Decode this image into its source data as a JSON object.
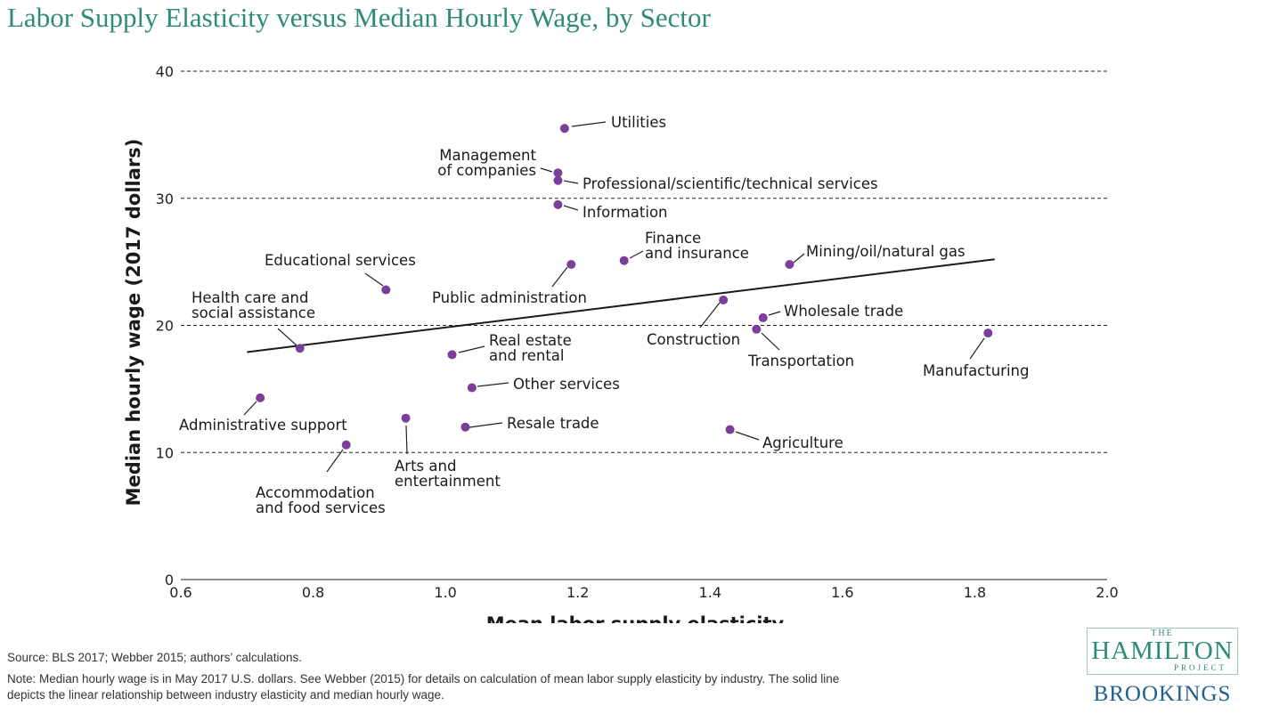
{
  "chart_data": {
    "type": "scatter",
    "title": "Labor Supply Elasticity versus Median Hourly Wage, by Sector",
    "xlabel": "Mean labor supply elasticity",
    "ylabel": "Median hourly wage (2017 dollars)",
    "xlim": [
      0.6,
      2.0
    ],
    "ylim": [
      0,
      40
    ],
    "xticks": [
      "0.6",
      "0.8",
      "1.0",
      "1.2",
      "1.4",
      "1.6",
      "1.8",
      "2.0"
    ],
    "yticks": [
      "0",
      "10",
      "20",
      "30",
      "40"
    ],
    "grid": "horizontal dashed",
    "point_color": "#7b3f99",
    "points": [
      {
        "label": [
          "Utilities"
        ],
        "x": 1.18,
        "y": 35.5
      },
      {
        "label": [
          "Management",
          "of companies"
        ],
        "x": 1.17,
        "y": 32.0
      },
      {
        "label": [
          "Professional/scientific/technical services"
        ],
        "x": 1.17,
        "y": 31.4
      },
      {
        "label": [
          "Information"
        ],
        "x": 1.17,
        "y": 29.5
      },
      {
        "label": [
          "Finance",
          "and insurance"
        ],
        "x": 1.27,
        "y": 25.1
      },
      {
        "label": [
          "Mining/oil/natural gas"
        ],
        "x": 1.52,
        "y": 24.8
      },
      {
        "label": [
          "Educational services"
        ],
        "x": 0.91,
        "y": 22.8
      },
      {
        "label": [
          "Public administration"
        ],
        "x": 1.19,
        "y": 24.8
      },
      {
        "label": [
          "Health care and",
          "social assistance"
        ],
        "x": 0.78,
        "y": 18.2
      },
      {
        "label": [
          "Construction"
        ],
        "x": 1.42,
        "y": 22.0
      },
      {
        "label": [
          "Wholesale trade"
        ],
        "x": 1.48,
        "y": 20.6
      },
      {
        "label": [
          "Transportation"
        ],
        "x": 1.47,
        "y": 19.7
      },
      {
        "label": [
          "Manufacturing"
        ],
        "x": 1.82,
        "y": 19.4
      },
      {
        "label": [
          "Real estate",
          "and rental"
        ],
        "x": 1.01,
        "y": 17.7
      },
      {
        "label": [
          "Other services"
        ],
        "x": 1.04,
        "y": 15.1
      },
      {
        "label": [
          "Administrative support"
        ],
        "x": 0.72,
        "y": 14.3
      },
      {
        "label": [
          "Arts and",
          "entertainment"
        ],
        "x": 0.94,
        "y": 12.7
      },
      {
        "label": [
          "Resale trade"
        ],
        "x": 1.03,
        "y": 12.0
      },
      {
        "label": [
          "Agriculture"
        ],
        "x": 1.43,
        "y": 11.8
      },
      {
        "label": [
          "Accommodation",
          "and food services"
        ],
        "x": 0.85,
        "y": 10.6
      }
    ],
    "trend_line": {
      "x": [
        0.7,
        1.83
      ],
      "y": [
        17.9,
        25.2
      ]
    }
  },
  "footer": {
    "source": "Source: BLS 2017; Webber 2015; authors’ calculations.",
    "note_line1": "Note: Median hourly wage is in May 2017 U.S. dollars. See Webber (2015) for details on calculation of mean labor supply elasticity by industry. The solid line",
    "note_line2": "depicts the linear relationship between industry elasticity and median hourly wage."
  },
  "logo": {
    "the": "THE",
    "hamilton": "HAMILTON",
    "project": "PROJECT",
    "brookings": "BROOKINGS"
  }
}
